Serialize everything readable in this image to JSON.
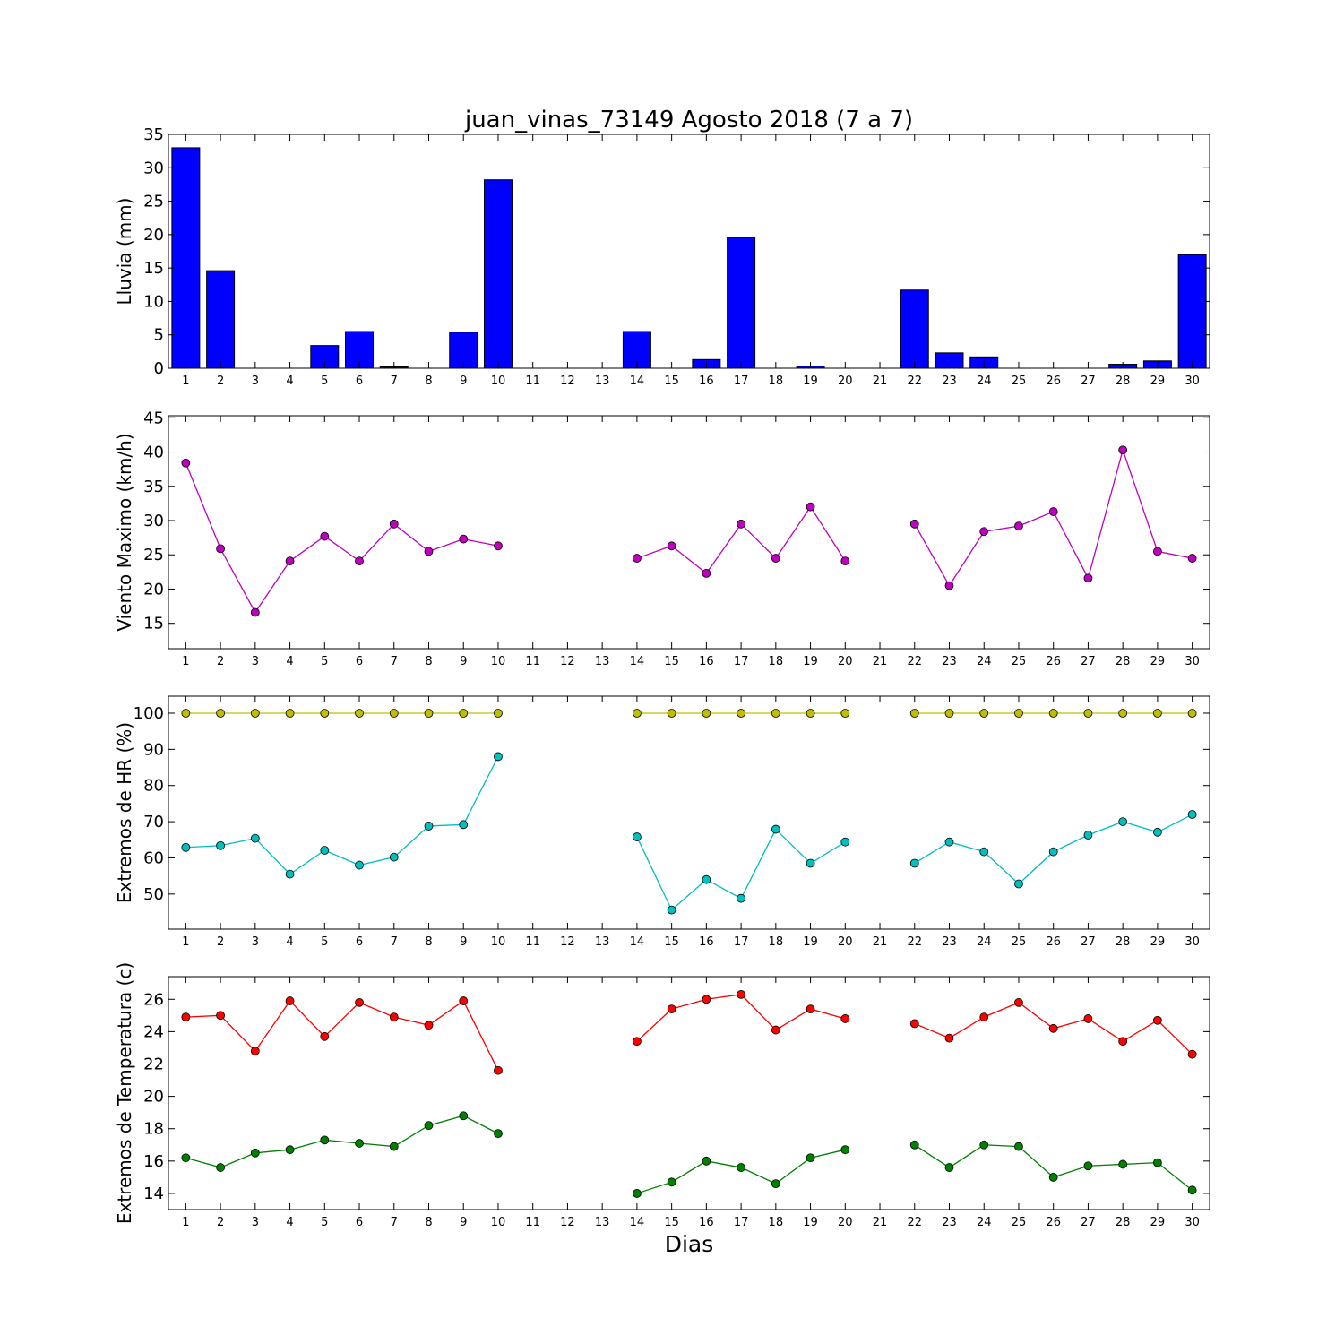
{
  "title": "juan_vinas_73149 Agosto 2018  (7 a 7)",
  "xlabel": "Dias",
  "chart_data": [
    {
      "type": "bar",
      "ylabel": "Lluvia (mm)",
      "ylim": [
        0,
        35
      ],
      "yticks": [
        0,
        5,
        10,
        15,
        20,
        25,
        30,
        35
      ],
      "x": [
        1,
        2,
        3,
        4,
        5,
        6,
        7,
        8,
        9,
        10,
        11,
        12,
        13,
        14,
        15,
        16,
        17,
        18,
        19,
        20,
        21,
        22,
        23,
        24,
        25,
        26,
        27,
        28,
        29,
        30
      ],
      "series": [
        {
          "color": "#0000ff",
          "values": [
            33.0,
            14.6,
            0,
            0,
            3.4,
            5.5,
            0.2,
            0,
            5.4,
            28.2,
            0,
            0,
            0,
            5.5,
            0,
            1.3,
            19.6,
            0,
            0.3,
            0,
            0,
            11.7,
            2.3,
            1.7,
            0,
            0,
            0,
            0.6,
            1.1,
            17.0
          ]
        }
      ]
    },
    {
      "type": "line",
      "ylabel": "Viento Maximo (km/h)",
      "ylim": [
        11.3,
        45.3
      ],
      "yticks": [
        15,
        20,
        25,
        30,
        35,
        40,
        45
      ],
      "x": [
        1,
        2,
        3,
        4,
        5,
        6,
        7,
        8,
        9,
        10,
        11,
        12,
        13,
        14,
        15,
        16,
        17,
        18,
        19,
        20,
        21,
        22,
        23,
        24,
        25,
        26,
        27,
        28,
        29,
        30
      ],
      "series": [
        {
          "color": "#bf00bf",
          "values": [
            38.4,
            25.9,
            16.6,
            24.1,
            27.7,
            24.1,
            29.5,
            25.5,
            27.3,
            26.3,
            null,
            null,
            null,
            24.5,
            26.3,
            22.3,
            29.5,
            24.5,
            32.0,
            24.1,
            null,
            29.5,
            20.5,
            28.4,
            29.2,
            31.3,
            21.6,
            40.3,
            25.5,
            24.5
          ]
        }
      ]
    },
    {
      "type": "line",
      "ylabel": "Extremos de HR (%)",
      "ylim": [
        40.3,
        104.7
      ],
      "yticks": [
        50,
        60,
        70,
        80,
        90,
        100
      ],
      "x": [
        1,
        2,
        3,
        4,
        5,
        6,
        7,
        8,
        9,
        10,
        11,
        12,
        13,
        14,
        15,
        16,
        17,
        18,
        19,
        20,
        21,
        22,
        23,
        24,
        25,
        26,
        27,
        28,
        29,
        30
      ],
      "series": [
        {
          "color": "#bfbf00",
          "values": [
            100,
            100,
            100,
            100,
            100,
            100,
            100,
            100,
            100,
            100,
            null,
            null,
            null,
            100,
            100,
            100,
            100,
            100,
            100,
            100,
            null,
            100,
            100,
            100,
            100,
            100,
            100,
            100,
            100,
            100
          ]
        },
        {
          "color": "#00bfbf",
          "values": [
            62.9,
            63.4,
            65.4,
            55.5,
            62.1,
            58.0,
            60.2,
            68.8,
            69.2,
            88.0,
            null,
            null,
            null,
            65.8,
            45.6,
            54.0,
            48.8,
            67.9,
            58.5,
            64.4,
            null,
            58.5,
            64.4,
            61.7,
            52.8,
            61.7,
            66.3,
            70.0,
            67.1,
            72.0
          ]
        }
      ]
    },
    {
      "type": "line",
      "ylabel": "Extremos de Temperatura (c)",
      "ylim": [
        13.0,
        27.4
      ],
      "yticks": [
        14,
        16,
        18,
        20,
        22,
        24,
        26
      ],
      "x": [
        1,
        2,
        3,
        4,
        5,
        6,
        7,
        8,
        9,
        10,
        11,
        12,
        13,
        14,
        15,
        16,
        17,
        18,
        19,
        20,
        21,
        22,
        23,
        24,
        25,
        26,
        27,
        28,
        29,
        30
      ],
      "series": [
        {
          "color": "#ff0000",
          "values": [
            24.9,
            25.0,
            22.8,
            25.9,
            23.7,
            25.8,
            24.9,
            24.4,
            25.9,
            21.6,
            null,
            null,
            null,
            23.4,
            25.4,
            26.0,
            26.3,
            24.1,
            25.4,
            24.8,
            null,
            24.5,
            23.6,
            24.9,
            25.8,
            24.2,
            24.8,
            23.4,
            24.7,
            22.6
          ]
        },
        {
          "color": "#008000",
          "values": [
            16.2,
            15.6,
            16.5,
            16.7,
            17.3,
            17.1,
            16.9,
            18.2,
            18.8,
            17.7,
            null,
            null,
            null,
            14.0,
            14.7,
            16.0,
            15.6,
            14.6,
            16.2,
            16.7,
            null,
            17.0,
            15.6,
            17.0,
            16.9,
            15.0,
            15.7,
            15.8,
            15.9,
            14.2
          ]
        }
      ]
    }
  ]
}
